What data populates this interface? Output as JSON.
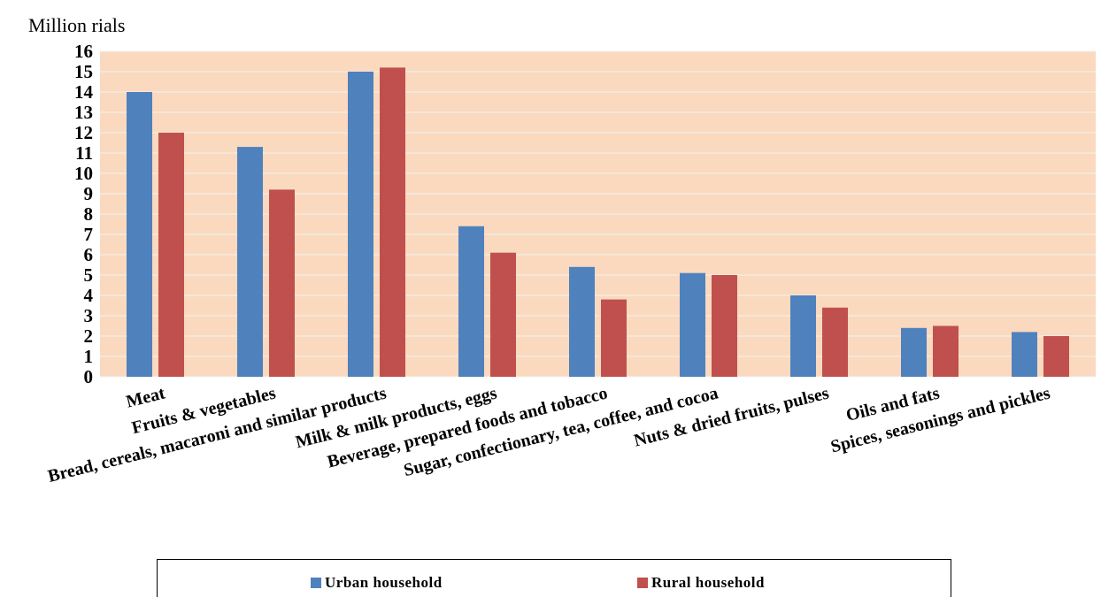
{
  "chart_data": {
    "type": "bar",
    "title": "",
    "ylabel": "Million rials",
    "xlabel": "",
    "ylim": [
      0,
      16
    ],
    "yticks": [
      "0",
      "1",
      "2",
      "3",
      "4",
      "5",
      "6",
      "7",
      "8",
      "9",
      "10",
      "11",
      "12",
      "13",
      "14",
      "15",
      "16"
    ],
    "grid": true,
    "legend_position": "bottom",
    "categories": [
      "Meat",
      "Fruits & vegetables",
      "Bread, cereals, macaroni and similar   products",
      "Milk & milk products, eggs",
      "Beverage, prepared foods and tobacco",
      "Sugar, confectionary, tea, coffee, and cocoa",
      "Nuts & dried fruits, pulses",
      "Oils and fats",
      "Spices, seasonings and pickles"
    ],
    "series": [
      {
        "name": "Urban household",
        "color": "#4f81bd",
        "values": [
          14.0,
          11.3,
          15.0,
          7.4,
          5.4,
          5.1,
          4.0,
          2.4,
          2.2
        ]
      },
      {
        "name": "Rural household",
        "color": "#c0504d",
        "values": [
          12.0,
          9.2,
          15.2,
          6.1,
          3.8,
          5.0,
          3.4,
          2.5,
          2.0
        ]
      }
    ],
    "plot_background": "#fad9bf",
    "gridline_color": "#f2f2f2"
  }
}
